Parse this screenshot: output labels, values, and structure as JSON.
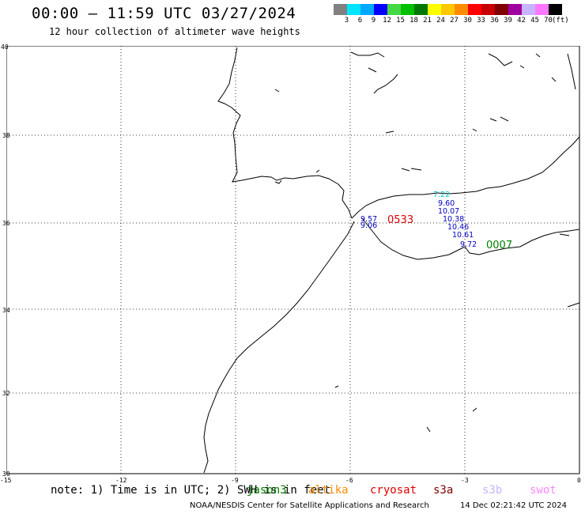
{
  "title": "00:00 – 11:59 UTC 03/27/2024",
  "subtitle": "12 hour collection of altimeter wave heights",
  "legend": {
    "colors": [
      "#808080",
      "#00e5ff",
      "#00a8ff",
      "#0000ff",
      "#44d844",
      "#00c000",
      "#007800",
      "#ffff00",
      "#ffc800",
      "#ff8c00",
      "#ff0000",
      "#c80000",
      "#800000",
      "#a000a0",
      "#c8b4ff",
      "#ff78ff",
      "#000000"
    ],
    "labels": [
      "3",
      "6",
      "9",
      "12",
      "15",
      "18",
      "21",
      "24",
      "27",
      "30",
      "33",
      "36",
      "39",
      "42",
      "45",
      "70",
      "(ft)"
    ]
  },
  "axes": {
    "x_ticks": [
      "-15",
      "-12",
      "-9",
      "-6",
      "-3",
      "0"
    ],
    "y_ticks": [
      "40",
      "38",
      "36",
      "34",
      "32",
      "30"
    ]
  },
  "swh_values": [
    {
      "text": "7.22",
      "color": "#00c8c8"
    },
    {
      "text": "9.60",
      "color": "#0000c0"
    },
    {
      "text": "10.07",
      "color": "#0000c0"
    },
    {
      "text": "10.38",
      "color": "#0000c0"
    },
    {
      "text": "10.46",
      "color": "#0000c0"
    },
    {
      "text": "10.61",
      "color": "#0000c0"
    },
    {
      "text": "9.72",
      "color": "#0000c0"
    },
    {
      "text": "9.57",
      "color": "#0000c0"
    },
    {
      "text": "9.06",
      "color": "#0000c0"
    }
  ],
  "pass_labels": [
    {
      "text": "0533",
      "color": "#e00000"
    },
    {
      "text": "0007",
      "color": "#008000"
    }
  ],
  "note": "note: 1) Time is in UTC; 2) SWH is in feet",
  "missions": [
    {
      "name": "jason3",
      "color": "#008000"
    },
    {
      "name": "altika",
      "color": "#ff8c00"
    },
    {
      "name": "cryosat",
      "color": "#e00000"
    },
    {
      "name": "s3a",
      "color": "#800000"
    },
    {
      "name": "s3b",
      "color": "#c8b4ff"
    },
    {
      "name": "swot",
      "color": "#ff88ff"
    }
  ],
  "footer": {
    "credit": "NOAA/NESDIS Center for Satellite Applications and Research",
    "timestamp": "14 Dec 02:21:42 UTC 2024"
  }
}
